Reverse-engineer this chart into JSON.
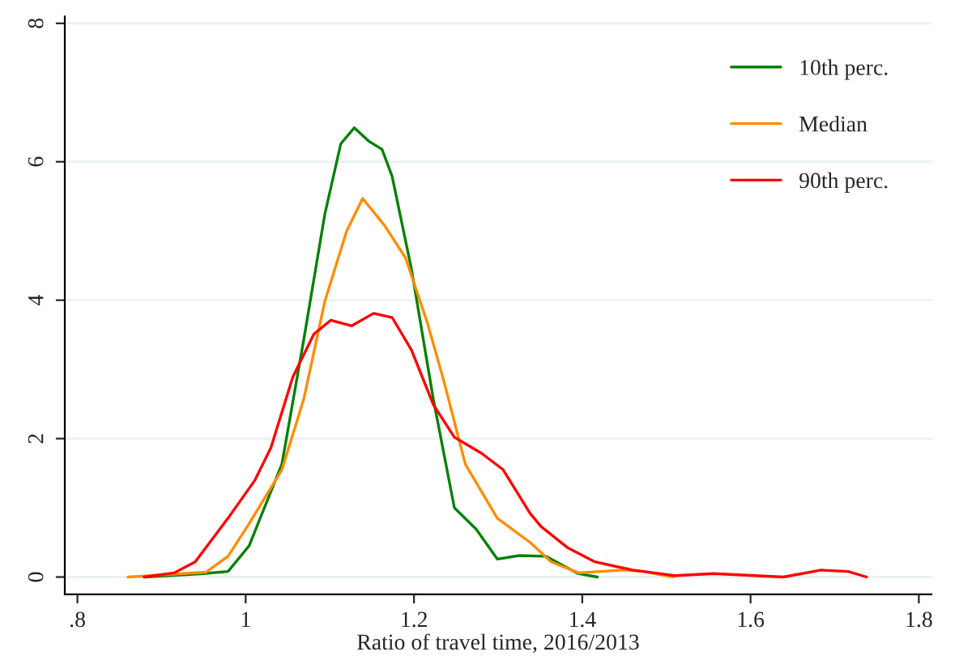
{
  "chart_data": {
    "type": "line",
    "xlabel": "Ratio of travel time, 2016/2013",
    "xlim": [
      0.785,
      1.815
    ],
    "ylim": [
      -0.25,
      8.1
    ],
    "xticks": [
      {
        "value": 0.8,
        "label": ".8"
      },
      1,
      1.2,
      1.4,
      1.6,
      1.8
    ],
    "yticks": [
      0,
      2,
      4,
      6,
      8
    ],
    "grid": "y",
    "legend": "top right",
    "marker": "none",
    "line_style": "solid",
    "series": [
      {
        "name": "10th perc.",
        "color": "#008000",
        "x": [
          0.88,
          0.95,
          0.979,
          1.004,
          1.043,
          1.069,
          1.094,
          1.113,
          1.129,
          1.146,
          1.162,
          1.174,
          1.197,
          1.223,
          1.248,
          1.274,
          1.299,
          1.325,
          1.357,
          1.395,
          1.418
        ],
        "values": [
          0,
          0.05,
          0.08,
          0.45,
          1.63,
          3.43,
          5.24,
          6.26,
          6.49,
          6.3,
          6.18,
          5.79,
          4.45,
          2.57,
          1.0,
          0.69,
          0.26,
          0.31,
          0.3,
          0.05,
          0
        ]
      },
      {
        "name": "Median",
        "color": "#ff8c00",
        "x": [
          0.86,
          0.953,
          0.979,
          1.004,
          1.043,
          1.069,
          1.094,
          1.12,
          1.139,
          1.165,
          1.19,
          1.216,
          1.236,
          1.261,
          1.299,
          1.338,
          1.363,
          1.396,
          1.447,
          1.473,
          1.508
        ],
        "values": [
          0,
          0.07,
          0.3,
          0.77,
          1.55,
          2.57,
          3.98,
          5.0,
          5.47,
          5.08,
          4.61,
          3.67,
          2.81,
          1.63,
          0.85,
          0.5,
          0.22,
          0.06,
          0.1,
          0.08,
          0
        ]
      },
      {
        "name": "90th perc.",
        "color": "#ff0000",
        "x": [
          0.879,
          0.915,
          0.94,
          0.979,
          1.011,
          1.03,
          1.056,
          1.081,
          1.101,
          1.126,
          1.152,
          1.174,
          1.197,
          1.223,
          1.248,
          1.28,
          1.306,
          1.338,
          1.351,
          1.383,
          1.415,
          1.46,
          1.511,
          1.556,
          1.639,
          1.684,
          1.716,
          1.738
        ],
        "values": [
          0,
          0.06,
          0.22,
          0.85,
          1.4,
          1.87,
          2.89,
          3.51,
          3.71,
          3.63,
          3.81,
          3.75,
          3.28,
          2.49,
          2.02,
          1.79,
          1.55,
          0.92,
          0.73,
          0.42,
          0.22,
          0.1,
          0.02,
          0.05,
          0,
          0.1,
          0.08,
          0
        ]
      }
    ]
  }
}
